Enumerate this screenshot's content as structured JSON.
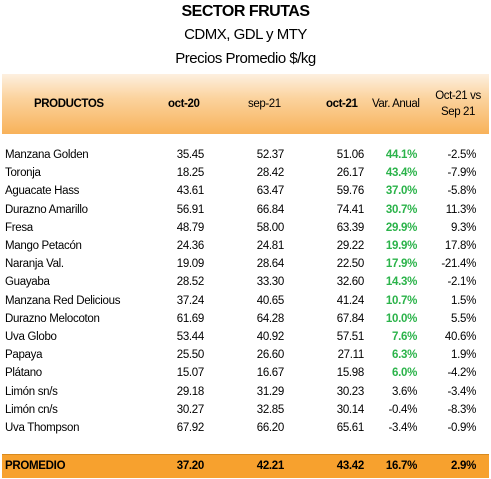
{
  "title": "SECTOR FRUTAS",
  "subtitle": "CDMX, GDL y MTY",
  "unit_line": "Precios Promedio $/kg",
  "headers": {
    "producto": "PRODUCTOS",
    "col1": "oct-20",
    "col2": "sep-21",
    "col3": "oct-21",
    "col4": "Var. Anual",
    "col5_line1": "Oct-21 vs",
    "col5_line2": "Sep 21"
  },
  "rows": [
    {
      "producto": "Manzana Golden",
      "oct20": "35.45",
      "sep21": "52.37",
      "oct21": "51.06",
      "var_anual": "44.1%",
      "var_mensual": "-2.5%"
    },
    {
      "producto": "Toronja",
      "oct20": "18.25",
      "sep21": "28.42",
      "oct21": "26.17",
      "var_anual": "43.4%",
      "var_mensual": "-7.9%"
    },
    {
      "producto": "Aguacate Hass",
      "oct20": "43.61",
      "sep21": "63.47",
      "oct21": "59.76",
      "var_anual": "37.0%",
      "var_mensual": "-5.8%"
    },
    {
      "producto": "Durazno Amarillo",
      "oct20": "56.91",
      "sep21": "66.84",
      "oct21": "74.41",
      "var_anual": "30.7%",
      "var_mensual": "11.3%"
    },
    {
      "producto": "Fresa",
      "oct20": "48.79",
      "sep21": "58.00",
      "oct21": "63.39",
      "var_anual": "29.9%",
      "var_mensual": "9.3%"
    },
    {
      "producto": "Mango Petacón",
      "oct20": "24.36",
      "sep21": "24.81",
      "oct21": "29.22",
      "var_anual": "19.9%",
      "var_mensual": "17.8%"
    },
    {
      "producto": "Naranja Val.",
      "oct20": "19.09",
      "sep21": "28.64",
      "oct21": "22.50",
      "var_anual": "17.9%",
      "var_mensual": "-21.4%"
    },
    {
      "producto": "Guayaba",
      "oct20": "28.52",
      "sep21": "33.30",
      "oct21": "32.60",
      "var_anual": "14.3%",
      "var_mensual": "-2.1%"
    },
    {
      "producto": "Manzana Red Delicious",
      "oct20": "37.24",
      "sep21": "40.65",
      "oct21": "41.24",
      "var_anual": "10.7%",
      "var_mensual": "1.5%"
    },
    {
      "producto": "Durazno Melocoton",
      "oct20": "61.69",
      "sep21": "64.28",
      "oct21": "67.84",
      "var_anual": "10.0%",
      "var_mensual": "5.5%"
    },
    {
      "producto": "Uva Globo",
      "oct20": "53.44",
      "sep21": "40.92",
      "oct21": "57.51",
      "var_anual": "7.6%",
      "var_mensual": "40.6%"
    },
    {
      "producto": "Papaya",
      "oct20": "25.50",
      "sep21": "26.60",
      "oct21": "27.11",
      "var_anual": "6.3%",
      "var_mensual": "1.9%"
    },
    {
      "producto": "Plátano",
      "oct20": "15.07",
      "sep21": "16.67",
      "oct21": "15.98",
      "var_anual": "6.0%",
      "var_mensual": "-4.2%"
    },
    {
      "producto": "Limón sn/s",
      "oct20": "29.18",
      "sep21": "31.29",
      "oct21": "30.23",
      "var_anual": "3.6%",
      "var_mensual": "-3.4%"
    },
    {
      "producto": "Limón cn/s",
      "oct20": "30.27",
      "sep21": "32.85",
      "oct21": "30.14",
      "var_anual": "-0.4%",
      "var_mensual": "-8.3%"
    },
    {
      "producto": "Uva Thompson",
      "oct20": "67.92",
      "sep21": "66.20",
      "oct21": "65.61",
      "var_anual": "-3.4%",
      "var_mensual": "-0.9%"
    }
  ],
  "footer": {
    "producto": "PROMEDIO",
    "oct20": "37.20",
    "sep21": "42.21",
    "oct21": "43.42",
    "var_anual": "16.7%",
    "var_mensual": "2.9%"
  },
  "colors": {
    "positive_green": "#2bb34a",
    "header_orange": "#f8b25a",
    "footer_orange": "#f7a12e"
  }
}
